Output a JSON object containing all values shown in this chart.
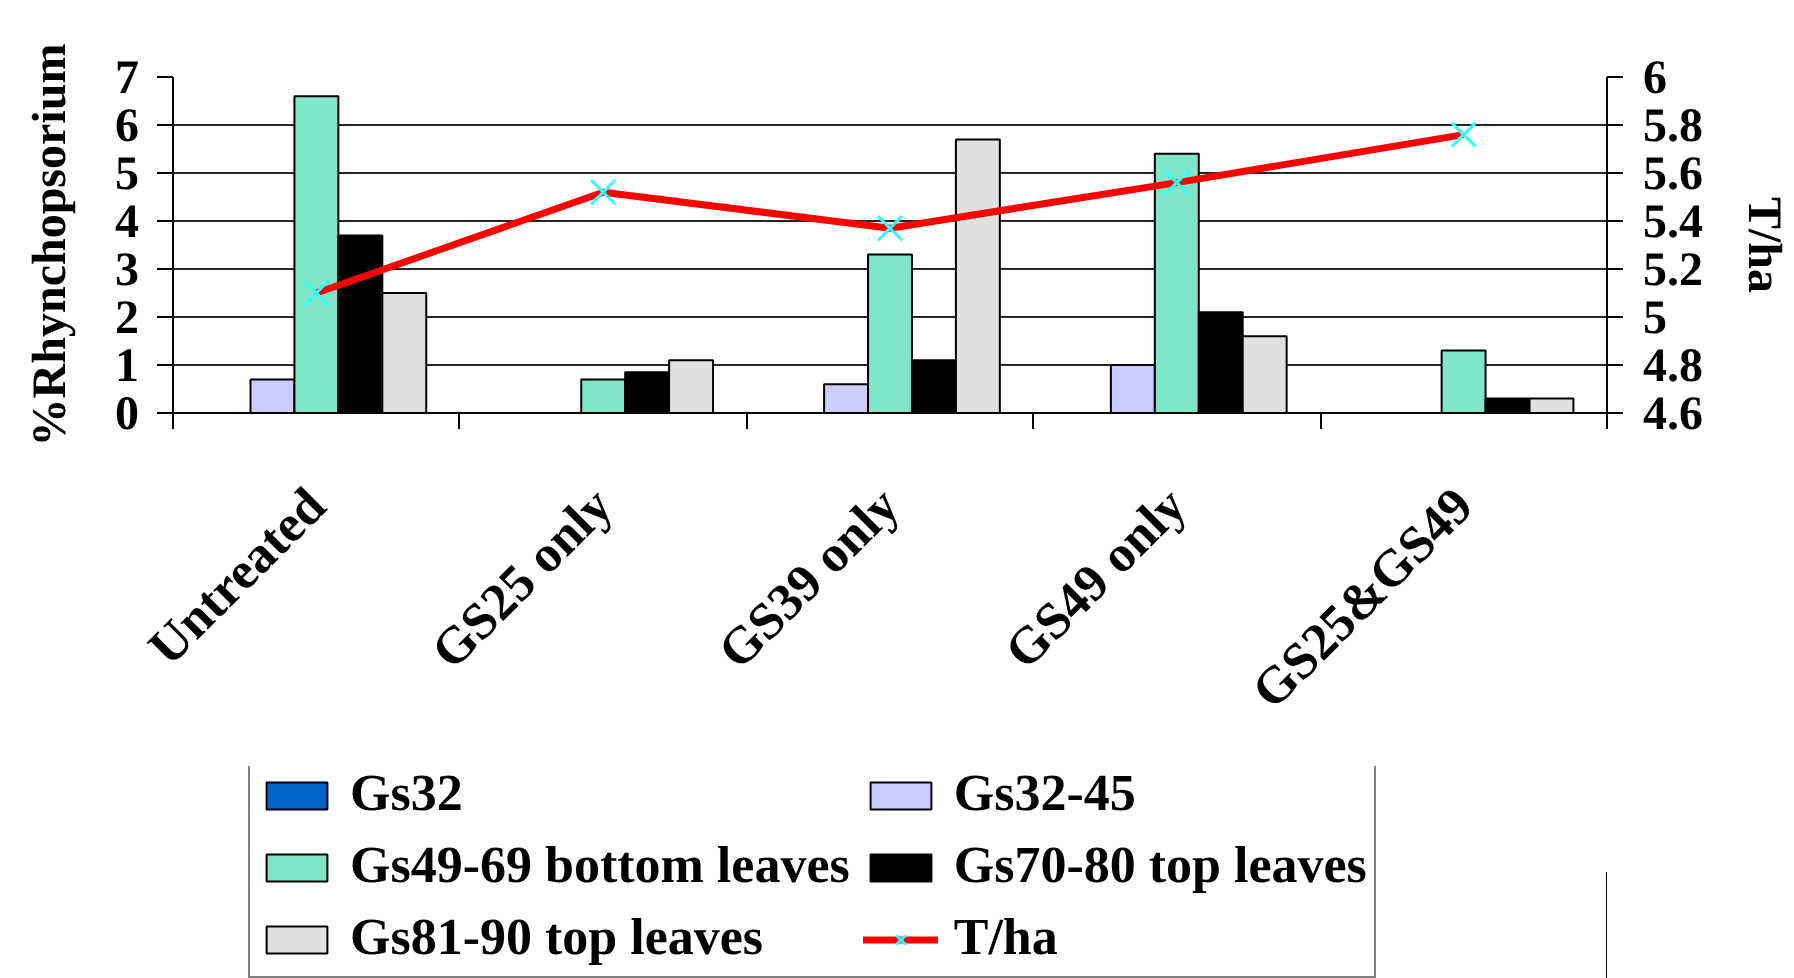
{
  "chart_data": {
    "type": "bar",
    "ylabel": "%Rhynchopsorium",
    "y2label": "T/ha",
    "categories": [
      "Untreated",
      "GS25 only",
      "GS39 only",
      "GS49 only",
      "GS25&GS49"
    ],
    "series": [
      {
        "name": "Gs32",
        "color": "#0066cc",
        "values": [
          null,
          null,
          null,
          null,
          null
        ]
      },
      {
        "name": "Gs32-45",
        "color": "#ccccff",
        "values": [
          0.7,
          null,
          0.6,
          1.0,
          null
        ]
      },
      {
        "name": "Gs49-69 bottom leaves",
        "color": "#80e6c8",
        "values": [
          6.6,
          0.7,
          3.3,
          5.4,
          1.3
        ]
      },
      {
        "name": "Gs70-80 top leaves",
        "color": "#000000",
        "values": [
          3.7,
          0.85,
          1.1,
          2.1,
          0.3
        ]
      },
      {
        "name": "Gs81-90 top leaves",
        "color": "#e0e0e0",
        "values": [
          2.5,
          1.1,
          5.7,
          1.6,
          0.3
        ]
      },
      {
        "name": "T/ha",
        "type": "line",
        "axis": "y2",
        "color": "#ff0000",
        "colors": [
          "#33ffff",
          "#33ffff",
          "#33ffff",
          "#33ffff",
          "#33ffff"
        ],
        "marker": "cross",
        "values": [
          5.1,
          5.52,
          5.37,
          5.56,
          5.76
        ]
      }
    ],
    "ylim": [
      0,
      7
    ],
    "yticks": [
      0,
      1,
      2,
      3,
      4,
      5,
      6,
      7
    ],
    "y2lim": [
      4.6,
      6
    ],
    "y2ticks": [
      4.6,
      4.8,
      5,
      5.2,
      5.4,
      5.6,
      5.8,
      6
    ],
    "grid": "y",
    "legend": "bottom"
  }
}
